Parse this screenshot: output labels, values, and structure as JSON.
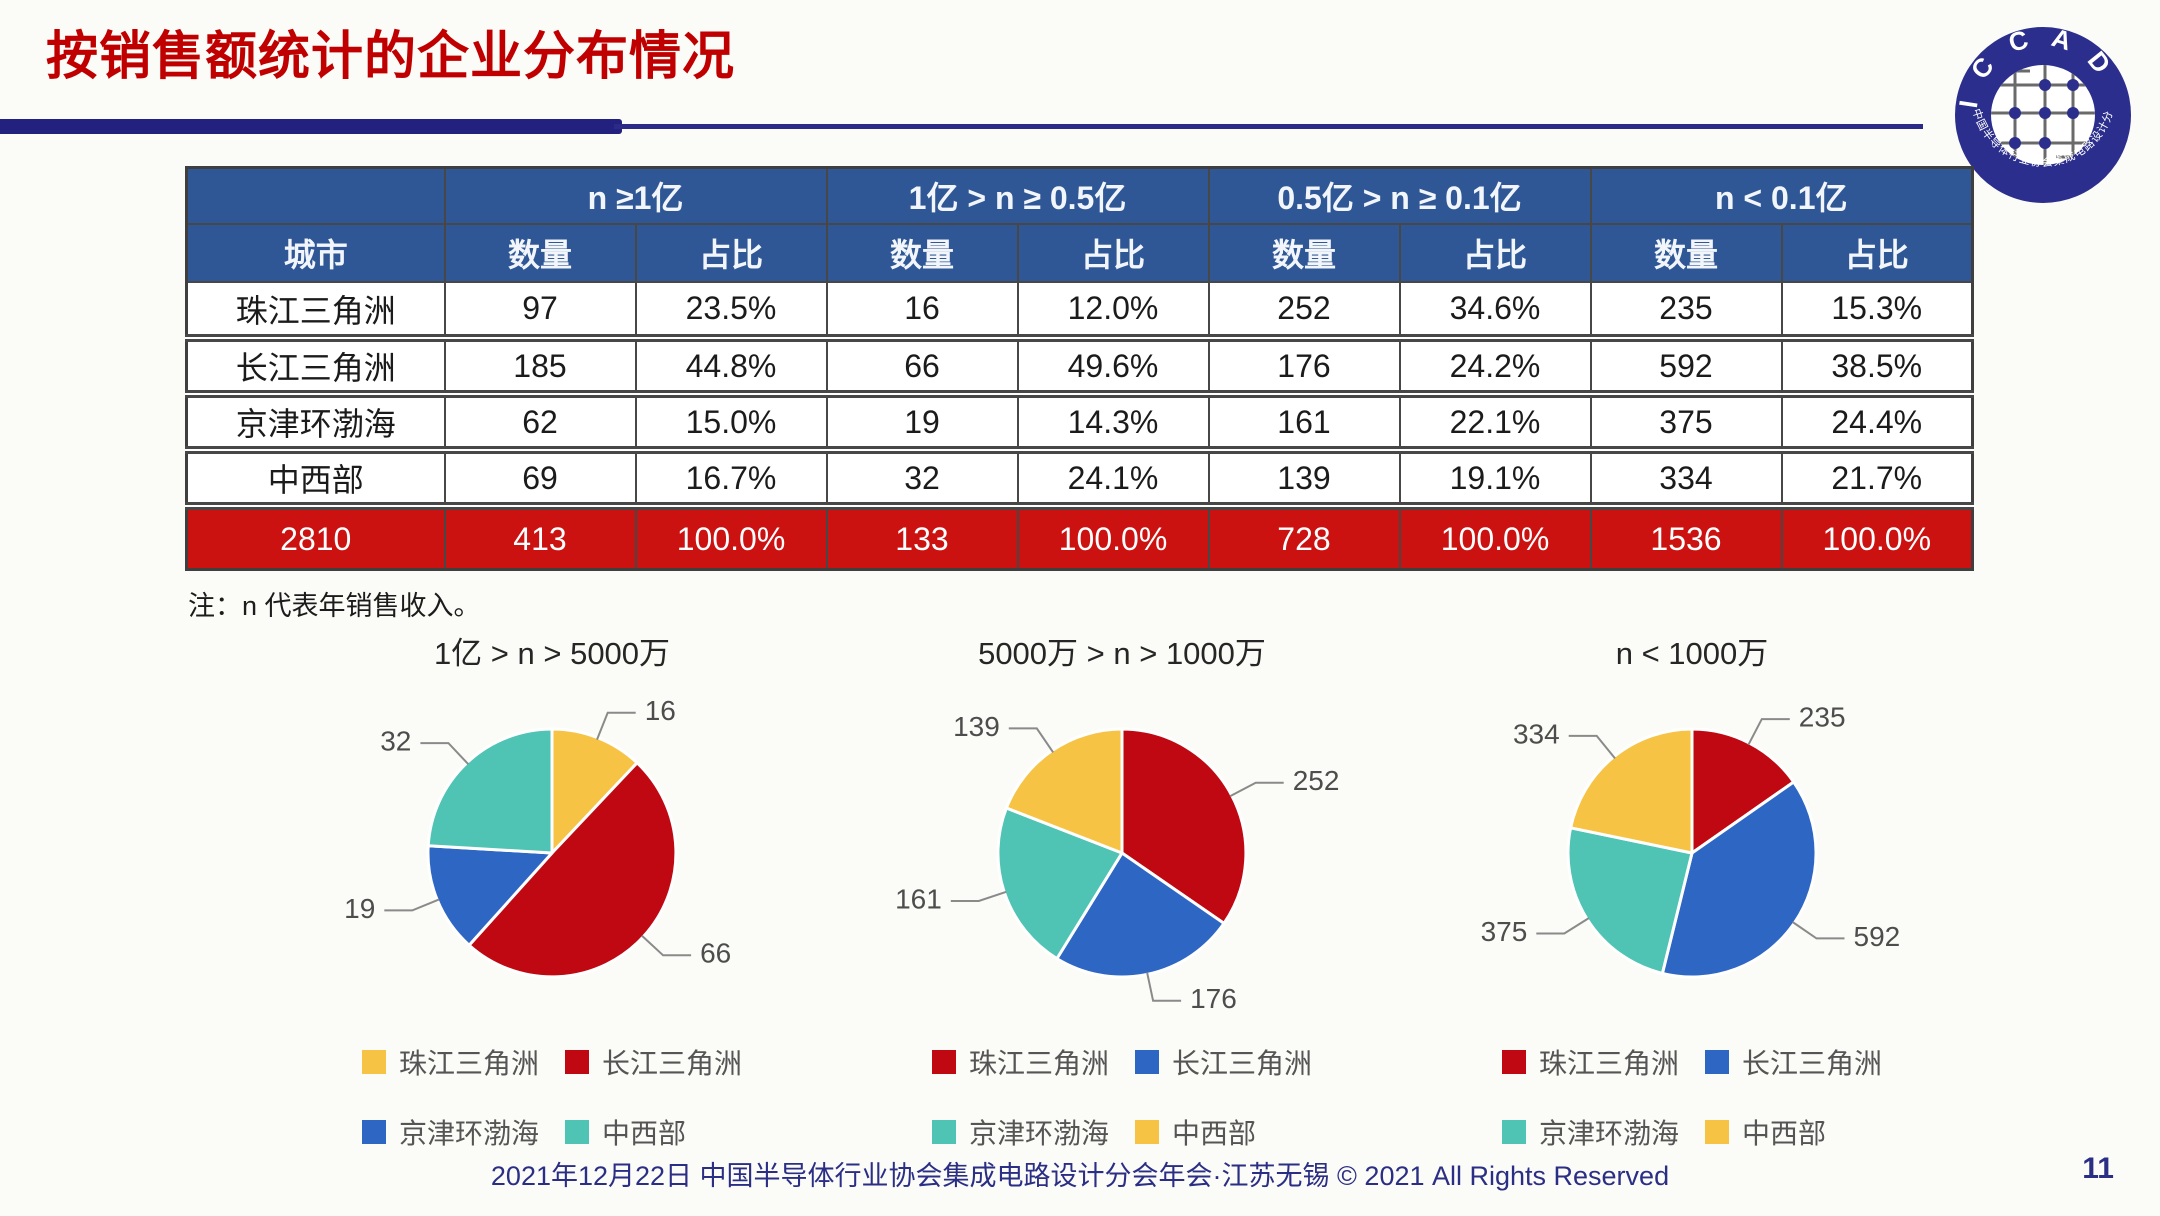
{
  "title": "按销售额统计的企业分布情况",
  "logo": {
    "name": "ICCAD",
    "letters": "I C C A D",
    "ring_text": "中国半导体行业协会集成电路设计分会"
  },
  "table": {
    "corner_label": "",
    "city_header": "城市",
    "group_headers": [
      "n ≥1亿",
      "1亿 > n ≥ 0.5亿",
      "0.5亿 > n ≥ 0.1亿",
      "n < 0.1亿"
    ],
    "sub_headers": [
      "数量",
      "占比"
    ],
    "rows": [
      {
        "city": "珠江三角洲",
        "values": [
          "97",
          "23.5%",
          "16",
          "12.0%",
          "252",
          "34.6%",
          "235",
          "15.3%"
        ]
      },
      {
        "city": "长江三角洲",
        "values": [
          "185",
          "44.8%",
          "66",
          "49.6%",
          "176",
          "24.2%",
          "592",
          "38.5%"
        ]
      },
      {
        "city": "京津环渤海",
        "values": [
          "62",
          "15.0%",
          "19",
          "14.3%",
          "161",
          "22.1%",
          "375",
          "24.4%"
        ]
      },
      {
        "city": "中西部",
        "values": [
          "69",
          "16.7%",
          "32",
          "24.1%",
          "139",
          "19.1%",
          "334",
          "21.7%"
        ]
      }
    ],
    "total_row": [
      "2810",
      "413",
      "100.0%",
      "133",
      "100.0%",
      "728",
      "100.0%",
      "1536",
      "100.0%"
    ]
  },
  "note": "注：n 代表年销售收入。",
  "chart_data": [
    {
      "type": "pie",
      "title": "1亿 > n > 5000万",
      "categories": [
        "珠江三角洲",
        "长江三角洲",
        "京津环渤海",
        "中西部"
      ],
      "values": [
        16,
        66,
        19,
        32
      ],
      "colors": [
        "#f6c344",
        "#bf0811",
        "#2e66c4",
        "#4fc4b4"
      ],
      "start_angle_deg": 0,
      "direction": "clockwise",
      "legend_position": "bottom"
    },
    {
      "type": "pie",
      "title": "5000万 > n > 1000万",
      "categories": [
        "珠江三角洲",
        "长江三角洲",
        "京津环渤海",
        "中西部"
      ],
      "values": [
        252,
        176,
        161,
        139
      ],
      "colors": [
        "#bf0811",
        "#2e66c4",
        "#4fc4b4",
        "#f6c344"
      ],
      "start_angle_deg": 0,
      "direction": "clockwise",
      "legend_position": "bottom"
    },
    {
      "type": "pie",
      "title": "n < 1000万",
      "categories": [
        "珠江三角洲",
        "长江三角洲",
        "京津环渤海",
        "中西部"
      ],
      "values": [
        235,
        592,
        375,
        334
      ],
      "colors": [
        "#bf0811",
        "#2e66c4",
        "#4fc4b4",
        "#f6c344"
      ],
      "start_angle_deg": 0,
      "direction": "clockwise",
      "legend_position": "bottom"
    }
  ],
  "footer": {
    "text": "2021年12月22日 中国半导体行业协会集成电路设计分会年会·江苏无锡 © 2021 All Rights Reserved",
    "page": "11"
  },
  "colors": {
    "title_red": "#c00000",
    "header_blue": "#2f5796",
    "total_row_red": "#cc1111",
    "navy_bar": "#23217f",
    "footer_navy": "#2b2e85",
    "pie_yellow": "#f6c344",
    "pie_red": "#bf0811",
    "pie_blue": "#2e66c4",
    "pie_teal": "#4fc4b4"
  }
}
